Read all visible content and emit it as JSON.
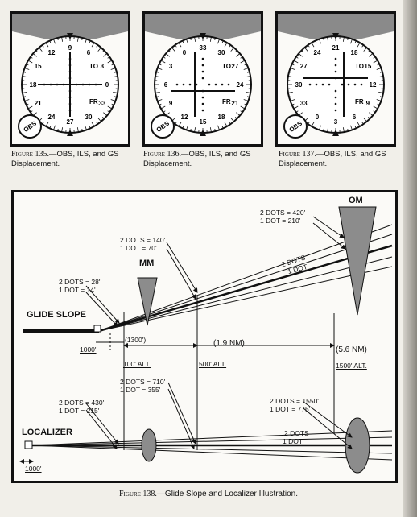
{
  "figures_top": [
    {
      "figure_label": "Figure 135.",
      "title": "—OBS, ILS, and GS",
      "title_line2": "Displacement.",
      "to_label": "TO",
      "fr_label": "FR",
      "obs_label": "OBS",
      "dial_numbers": [
        "9",
        "6",
        "3",
        "0",
        "33",
        "30",
        "27",
        "24",
        "21",
        "18",
        "15",
        "12"
      ]
    },
    {
      "figure_label": "Figure 136.",
      "title": "—OBS, ILS, and GS",
      "title_line2": "Displacement.",
      "to_label": "TO",
      "fr_label": "FR",
      "obs_label": "OBS",
      "dial_numbers": [
        "33",
        "30",
        "27",
        "24",
        "21",
        "18",
        "15",
        "12",
        "9",
        "6",
        "3",
        "0"
      ]
    },
    {
      "figure_label": "Figure 137.",
      "title": "—OBS, ILS, and GS",
      "title_line2": "Displacement.",
      "to_label": "TO",
      "fr_label": "FR",
      "obs_label": "OBS",
      "dial_numbers": [
        "21",
        "18",
        "15",
        "12",
        "9",
        "6",
        "3",
        "0",
        "33",
        "30",
        "27",
        "24"
      ]
    }
  ],
  "diagram": {
    "om_label": "OM",
    "mm_label": "MM",
    "glide_slope_label": "GLIDE SLOPE",
    "localizer_label": "LOCALIZER",
    "om_dots": [
      "2 DOTS = 420'",
      "1 DOT = 210'"
    ],
    "mm_dots": [
      "2 DOTS = 140'",
      "1 DOT = 70'"
    ],
    "threshold_dots": [
      "2 DOTS = 28'",
      "1 DOT = 14'"
    ],
    "gs_2dots": "2 DOTS",
    "gs_1dot": "1 DOT",
    "dist_1300": "(1300')",
    "dist_1_9": "(1.9 NM)",
    "dist_5_6": "(5.6 NM)",
    "alt_100": "100' ALT.",
    "alt_500": "500' ALT.",
    "alt_1500": "1500' ALT.",
    "gs_1000": "1000'",
    "loc_mm_dots": [
      "2 DOTS = 710'",
      "1 DOT = 355'"
    ],
    "loc_th_dots": [
      "2 DOTS = 430'",
      "1 DOT = 215'"
    ],
    "loc_om_dots": [
      "2 DOTS = 1550'",
      "1 DOT = 775'"
    ],
    "loc_2dots": "2 DOTS",
    "loc_1dot": "1 DOT",
    "loc_1000": "1000'"
  },
  "caption_bottom": {
    "figure_label": "Figure 138.",
    "title": "—Glide Slope and Localizer Illustration."
  }
}
